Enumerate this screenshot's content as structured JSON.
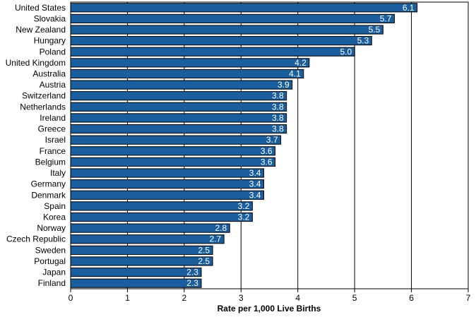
{
  "chart_data": {
    "type": "bar",
    "orientation": "horizontal",
    "categories": [
      "United States",
      "Slovakia",
      "New Zealand",
      "Hungary",
      "Poland",
      "United Kingdom",
      "Australia",
      "Austria",
      "Switzerland",
      "Netherlands",
      "Ireland",
      "Greece",
      "Israel",
      "France",
      "Belgium",
      "Italy",
      "Germany",
      "Denmark",
      "Spain",
      "Korea",
      "Norway",
      "Czech Republic",
      "Sweden",
      "Portugal",
      "Japan",
      "Finland"
    ],
    "values": [
      6.1,
      5.7,
      5.5,
      5.3,
      5.0,
      4.2,
      4.1,
      3.9,
      3.8,
      3.8,
      3.8,
      3.8,
      3.7,
      3.6,
      3.6,
      3.4,
      3.4,
      3.4,
      3.2,
      3.2,
      2.8,
      2.7,
      2.5,
      2.5,
      2.3,
      2.3
    ],
    "value_labels": [
      "6.1",
      "5.7",
      "5.5",
      "5.3",
      "5.0",
      "4.2",
      "4.1",
      "3.9",
      "3.8",
      "3.8",
      "3.8",
      "3.8",
      "3.7",
      "3.6",
      "3.6",
      "3.4",
      "3.4",
      "3.4",
      "3.2",
      "3.2",
      "2.8",
      "2.7",
      "2.5",
      "2.5",
      "2.3",
      "2.3"
    ],
    "title": "",
    "xlabel": "Rate per 1,000 Live Births",
    "ylabel": "",
    "xlim": [
      0,
      7
    ],
    "xticks": [
      "0",
      "1",
      "2",
      "3",
      "4",
      "5",
      "6",
      "7"
    ],
    "grid": "vertical",
    "legend": "none",
    "bar_color": "#1a5e9e",
    "bar_edge_color": "#000000",
    "gridline_color": "#000000"
  }
}
